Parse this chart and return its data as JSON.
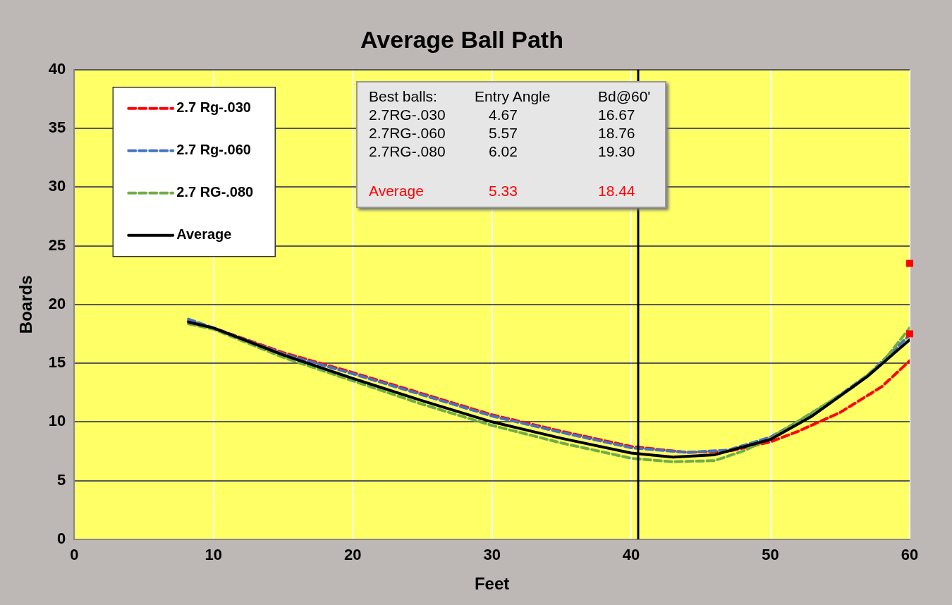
{
  "chart_data": {
    "type": "line",
    "title": "Average Ball Path",
    "xlabel": "Feet",
    "ylabel": "Boards",
    "xlim": [
      0,
      60
    ],
    "xticks": [
      0,
      10,
      20,
      30,
      40,
      50,
      60
    ],
    "ylim": [
      0,
      40
    ],
    "yticks": [
      0,
      5,
      10,
      15,
      20,
      25,
      30,
      35,
      40
    ],
    "grid": true,
    "legend": "top left",
    "series": [
      {
        "name": "2.7 Rg-.030",
        "color": "#ff0000",
        "line_style": "dashed",
        "x": [
          8.2,
          10,
          15,
          20,
          25,
          30,
          35,
          40,
          44,
          47,
          50,
          52,
          55,
          58,
          60
        ],
        "values": [
          18.6,
          18.0,
          15.9,
          14.2,
          12.4,
          10.6,
          9.2,
          7.9,
          7.4,
          7.5,
          8.3,
          9.2,
          10.8,
          13.0,
          15.2
        ]
      },
      {
        "name": "2.7 Rg-.060",
        "color": "#4472c4",
        "line_style": "dashed",
        "x": [
          8.2,
          10,
          15,
          20,
          25,
          30,
          35,
          40,
          44,
          47,
          50,
          53,
          55,
          57,
          60
        ],
        "values": [
          18.75,
          18.0,
          15.8,
          14.1,
          12.3,
          10.5,
          9.1,
          7.8,
          7.4,
          7.6,
          8.7,
          10.7,
          12.3,
          14.0,
          17.4
        ]
      },
      {
        "name": "2.7 RG-.080",
        "color": "#70ad47",
        "line_style": "dashed",
        "x": [
          8.2,
          10,
          15,
          20,
          25,
          30,
          35,
          40,
          43,
          46,
          48,
          50,
          53,
          56,
          58,
          60
        ],
        "values": [
          18.35,
          17.9,
          15.5,
          13.5,
          11.5,
          9.7,
          8.2,
          6.9,
          6.6,
          6.7,
          7.5,
          8.6,
          10.8,
          13.0,
          15.0,
          18.0
        ]
      },
      {
        "name": "Average",
        "color": "#000000",
        "line_style": "solid",
        "x": [
          8.2,
          10,
          15,
          20,
          25,
          30,
          35,
          40,
          43,
          46,
          50,
          53,
          55,
          57,
          60
        ],
        "values": [
          18.5,
          18.0,
          15.7,
          13.7,
          11.8,
          10.0,
          8.6,
          7.35,
          7.0,
          7.2,
          8.5,
          10.5,
          12.2,
          13.9,
          17.0
        ]
      },
      {
        "type": "scatter",
        "color": "#ff0000",
        "marker": "square",
        "x": [
          60,
          60
        ],
        "values": [
          23.5,
          17.5
        ]
      }
    ],
    "ref_lines": [
      {
        "axis": "x",
        "value": 40.5,
        "color": "#000000"
      }
    ],
    "annotations": [
      "Best balls:",
      "Entry Angle",
      "Bd@60'",
      "2.7RG-.030",
      "4.67",
      "16.67",
      "2.7RG-.060",
      "5.57",
      "18.76",
      "2.7RG-.080",
      "6.02",
      "19.30",
      "Average",
      "5.33",
      "18.44"
    ]
  }
}
